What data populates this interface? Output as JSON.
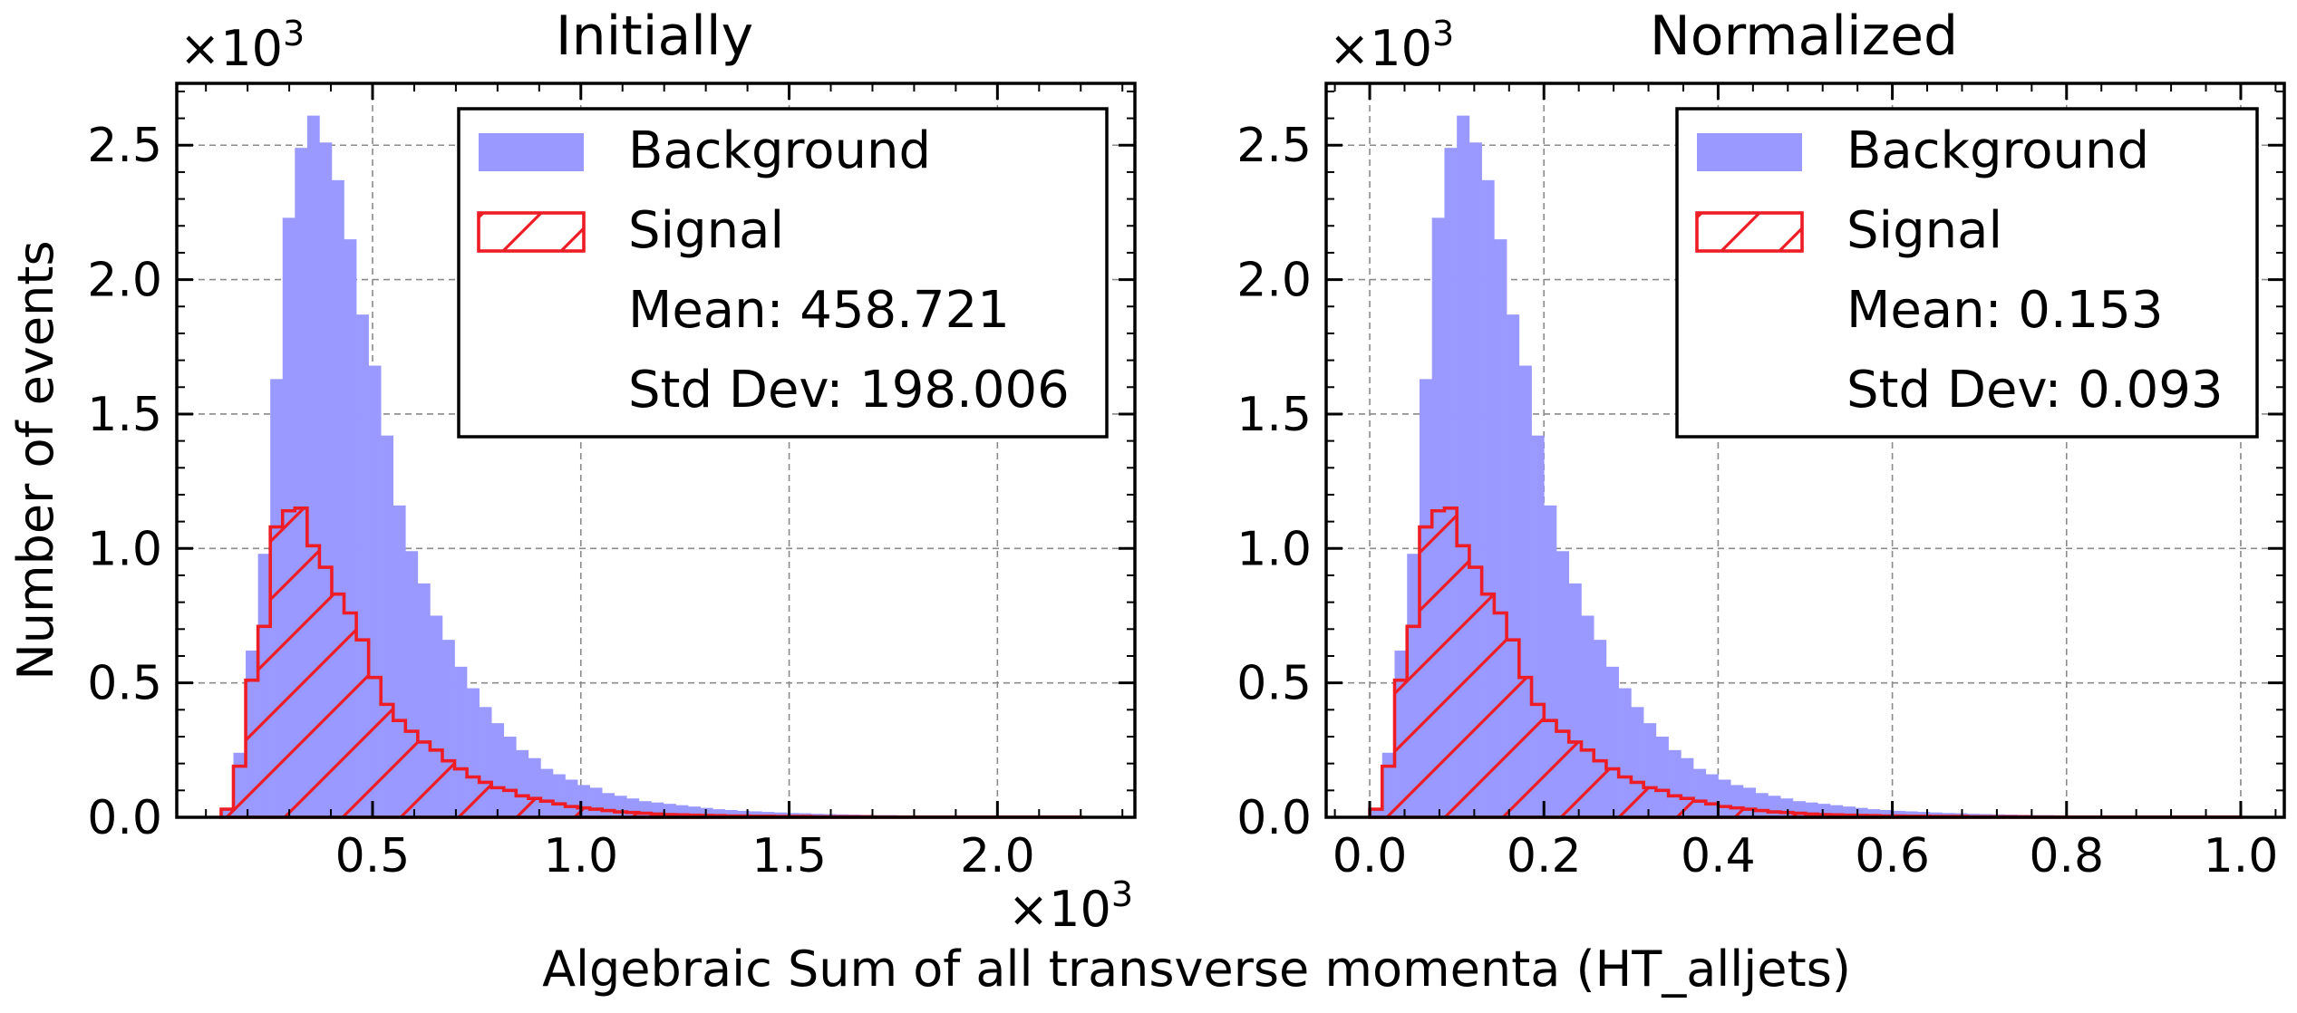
{
  "figure": {
    "ylabel": "Number of events",
    "xlabel": "Algebraic Sum of all transverse momenta (HT_alljets)",
    "x_multiplier_base": "×10",
    "x_multiplier_exp": "3"
  },
  "colors": {
    "background_fill": "#9999ff",
    "signal_edge": "#ee1c24",
    "grid": "#8a8a8a",
    "axes": "#000000"
  },
  "chart_data": [
    {
      "type": "histogram",
      "title": "Initially",
      "y_multiplier_base": "×10",
      "y_multiplier_exp": "3",
      "xlim": [
        0.03,
        2.33
      ],
      "ylim": [
        0,
        2.73
      ],
      "x_ticks": [
        0.5,
        1.0,
        1.5,
        2.0
      ],
      "x_tick_labels": [
        "0.5",
        "1.0",
        "1.5",
        "2.0"
      ],
      "y_ticks": [
        0,
        0.5,
        1.0,
        1.5,
        2.0,
        2.5
      ],
      "y_tick_labels": [
        "0.0",
        "0.5",
        "1.0",
        "1.5",
        "2.0",
        "2.5"
      ],
      "grid": true,
      "legend_position": "top-right",
      "legend": {
        "entries": [
          {
            "label": "Background",
            "style": "fill"
          },
          {
            "label": "Signal",
            "style": "hatch"
          }
        ],
        "mean_text": "Mean: 458.721",
        "std_text": "Std Dev: 198.006"
      },
      "bin_start": 0.1365,
      "bin_width": 0.0295,
      "series": [
        {
          "name": "Background",
          "values": [
            0.03,
            0.24,
            0.62,
            0.98,
            1.63,
            2.23,
            2.49,
            2.61,
            2.51,
            2.37,
            2.15,
            1.87,
            1.68,
            1.42,
            1.16,
            0.99,
            0.87,
            0.75,
            0.66,
            0.56,
            0.48,
            0.41,
            0.35,
            0.3,
            0.25,
            0.22,
            0.18,
            0.16,
            0.14,
            0.12,
            0.11,
            0.09,
            0.08,
            0.07,
            0.06,
            0.055,
            0.05,
            0.045,
            0.04,
            0.035,
            0.03,
            0.027,
            0.024,
            0.022,
            0.02,
            0.018,
            0.016,
            0.015,
            0.013,
            0.012,
            0.011,
            0.01,
            0.009,
            0.008,
            0.008,
            0.007,
            0.006,
            0.006,
            0.005,
            0.005,
            0.005,
            0.004,
            0.004,
            0.004,
            0.003,
            0.003,
            0.003,
            0.003,
            0.003,
            0.002
          ]
        },
        {
          "name": "Signal",
          "values": [
            0.03,
            0.19,
            0.51,
            0.71,
            1.08,
            1.14,
            1.15,
            1.01,
            0.93,
            0.83,
            0.76,
            0.66,
            0.52,
            0.42,
            0.36,
            0.32,
            0.28,
            0.25,
            0.21,
            0.18,
            0.15,
            0.13,
            0.11,
            0.1,
            0.08,
            0.07,
            0.06,
            0.05,
            0.04,
            0.035,
            0.03,
            0.025,
            0.02,
            0.018,
            0.015,
            0.012,
            0.01,
            0.009,
            0.008,
            0.007,
            0.006,
            0.005,
            0.005,
            0.004,
            0.004,
            0.003,
            0.003,
            0.003,
            0.002,
            0.002,
            0.002,
            0.002,
            0.002,
            0.001,
            0.001,
            0.001,
            0.001,
            0.001,
            0.001,
            0.001,
            0.001,
            0.001,
            0.001,
            0.001,
            0.001,
            0.001,
            0.001,
            0.001,
            0.001,
            0.001
          ]
        }
      ]
    },
    {
      "type": "histogram",
      "title": "Normalized",
      "y_multiplier_base": "×10",
      "y_multiplier_exp": "3",
      "xlim": [
        -0.05,
        1.05
      ],
      "ylim": [
        0,
        2.73
      ],
      "x_ticks": [
        0.0,
        0.2,
        0.4,
        0.6,
        0.8,
        1.0
      ],
      "x_tick_labels": [
        "0.0",
        "0.2",
        "0.4",
        "0.6",
        "0.8",
        "1.0"
      ],
      "y_ticks": [
        0,
        0.5,
        1.0,
        1.5,
        2.0,
        2.5
      ],
      "y_tick_labels": [
        "0.0",
        "0.5",
        "1.0",
        "1.5",
        "2.0",
        "2.5"
      ],
      "grid": true,
      "legend_position": "top-right",
      "legend": {
        "entries": [
          {
            "label": "Background",
            "style": "fill"
          },
          {
            "label": "Signal",
            "style": "hatch"
          }
        ],
        "mean_text": "Mean: 0.153",
        "std_text": "Std Dev: 0.093"
      },
      "bin_start": 0.0,
      "bin_width": 0.01429,
      "series": [
        {
          "name": "Background",
          "values": [
            0.03,
            0.24,
            0.62,
            0.98,
            1.63,
            2.23,
            2.49,
            2.61,
            2.51,
            2.37,
            2.15,
            1.87,
            1.68,
            1.42,
            1.16,
            0.99,
            0.87,
            0.75,
            0.66,
            0.56,
            0.48,
            0.41,
            0.35,
            0.3,
            0.25,
            0.22,
            0.18,
            0.16,
            0.14,
            0.12,
            0.11,
            0.09,
            0.08,
            0.07,
            0.06,
            0.055,
            0.05,
            0.045,
            0.04,
            0.035,
            0.03,
            0.027,
            0.024,
            0.022,
            0.02,
            0.018,
            0.016,
            0.015,
            0.013,
            0.012,
            0.011,
            0.01,
            0.009,
            0.008,
            0.008,
            0.007,
            0.006,
            0.006,
            0.005,
            0.005,
            0.005,
            0.004,
            0.004,
            0.004,
            0.003,
            0.003,
            0.003,
            0.003,
            0.003,
            0.002
          ]
        },
        {
          "name": "Signal",
          "values": [
            0.03,
            0.19,
            0.51,
            0.71,
            1.08,
            1.14,
            1.15,
            1.01,
            0.93,
            0.83,
            0.76,
            0.66,
            0.52,
            0.42,
            0.36,
            0.32,
            0.28,
            0.25,
            0.21,
            0.18,
            0.15,
            0.13,
            0.11,
            0.1,
            0.08,
            0.07,
            0.06,
            0.05,
            0.04,
            0.035,
            0.03,
            0.025,
            0.02,
            0.018,
            0.015,
            0.012,
            0.01,
            0.009,
            0.008,
            0.007,
            0.006,
            0.005,
            0.005,
            0.004,
            0.004,
            0.003,
            0.003,
            0.003,
            0.002,
            0.002,
            0.002,
            0.002,
            0.002,
            0.001,
            0.001,
            0.001,
            0.001,
            0.001,
            0.001,
            0.001,
            0.001,
            0.001,
            0.001,
            0.001,
            0.001,
            0.001,
            0.001,
            0.001,
            0.001,
            0.001
          ]
        }
      ]
    }
  ]
}
